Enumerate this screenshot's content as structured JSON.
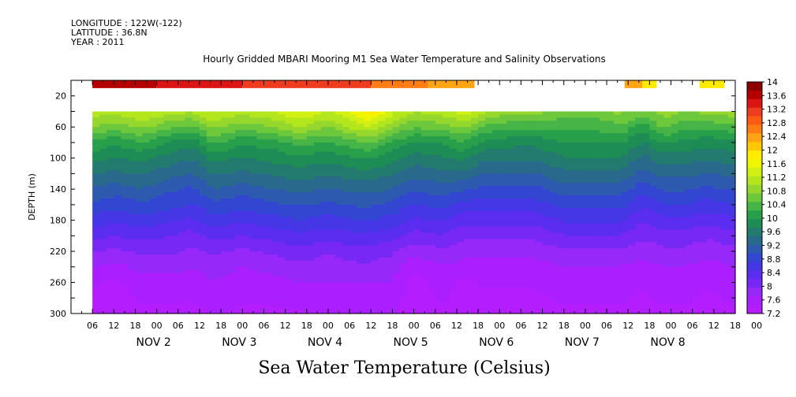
{
  "header": {
    "longitude": "LONGITUDE : 122W(-122)",
    "latitude": "LATITUDE : 36.8N",
    "year": "YEAR : 2011"
  },
  "chart_data": {
    "type": "heatmap",
    "title": "Hourly Gridded MBARI Mooring M1 Sea Water Temperature and Salinity Observations",
    "xlabel": "Sea Water Temperature (Celsius)",
    "ylabel": "DEPTH (m)",
    "ylim": [
      300,
      0
    ],
    "y_ticks": [
      20,
      60,
      100,
      140,
      180,
      220,
      260,
      300
    ],
    "x_hour_labels": [
      "06",
      "12",
      "18",
      "00",
      "06",
      "12",
      "18",
      "00",
      "06",
      "12",
      "18",
      "00",
      "06",
      "12",
      "18",
      "00",
      "06",
      "12",
      "18",
      "00",
      "06",
      "12",
      "18",
      "00",
      "06",
      "12",
      "18",
      "00",
      "06",
      "12",
      "18",
      "00"
    ],
    "x_day_labels": [
      "NOV 2",
      "NOV 3",
      "NOV 4",
      "NOV 5",
      "NOV 6",
      "NOV 7",
      "NOV 8"
    ],
    "x_range_hours": [
      0,
      186
    ],
    "data_start_hour": 6,
    "colorbar": {
      "labels": [
        "14",
        "13.6",
        "13.2",
        "12.8",
        "12.4",
        "12",
        "11.6",
        "11.2",
        "10.8",
        "10.4",
        "10",
        "9.6",
        "9.2",
        "8.8",
        "8.4",
        "8",
        "7.6",
        "7.2"
      ],
      "min": 7.2,
      "max": 14,
      "colors": [
        "#8b0000",
        "#b40000",
        "#dc1414",
        "#f03c1e",
        "#ff5a14",
        "#ff7d14",
        "#ffa514",
        "#ffc800",
        "#ffeb00",
        "#f0f500",
        "#d2f014",
        "#b4e61e",
        "#96d72d",
        "#6ec83c",
        "#46b446",
        "#28a04b",
        "#1e8c55",
        "#237a6e",
        "#28698c",
        "#2d5aaf",
        "#3246d2",
        "#4637e6",
        "#5a2df0",
        "#7828f5",
        "#9628fa",
        "#aa1eff",
        "#b41eff"
      ]
    },
    "surface_band": [
      {
        "hours": [
          6,
          24
        ],
        "value": 13.7
      },
      {
        "hours": [
          24,
          48
        ],
        "value": 13.4
      },
      {
        "hours": [
          48,
          84
        ],
        "value": 13.0
      },
      {
        "hours": [
          84,
          100
        ],
        "value": 12.6
      },
      {
        "hours": [
          100,
          113
        ],
        "value": 12.4
      },
      {
        "hours": [
          155,
          160
        ],
        "value": 12.3
      },
      {
        "hours": [
          160,
          164
        ],
        "value": 11.9
      },
      {
        "hours": [
          176,
          183
        ],
        "value": 11.9
      }
    ],
    "profile_depths": [
      40,
      60,
      80,
      100,
      120,
      140,
      160,
      180,
      200,
      220,
      240,
      260,
      280,
      300
    ],
    "profiles": [
      {
        "hour": 6,
        "values": [
          11.2,
          10.7,
          10.2,
          9.8,
          9.5,
          9.2,
          8.9,
          8.6,
          8.3,
          8.0,
          7.7,
          7.5,
          7.4,
          7.3
        ]
      },
      {
        "hour": 12,
        "values": [
          11.0,
          10.6,
          10.0,
          9.7,
          9.4,
          9.1,
          8.8,
          8.5,
          8.2,
          7.9,
          7.6,
          7.4,
          7.3,
          7.3
        ]
      },
      {
        "hour": 20,
        "values": [
          11.3,
          10.8,
          10.2,
          9.8,
          9.5,
          9.2,
          8.9,
          8.6,
          8.3,
          8.0,
          7.8,
          7.6,
          7.5,
          7.4
        ]
      },
      {
        "hour": 28,
        "values": [
          11.1,
          10.5,
          9.9,
          9.6,
          9.3,
          9.0,
          8.8,
          8.5,
          8.2,
          8.0,
          7.8,
          7.6,
          7.5,
          7.4
        ]
      },
      {
        "hour": 34,
        "values": [
          11.0,
          10.4,
          9.8,
          9.5,
          9.2,
          8.9,
          8.7,
          8.4,
          8.1,
          7.9,
          7.7,
          7.6,
          7.5,
          7.3
        ]
      },
      {
        "hour": 40,
        "values": [
          11.3,
          10.8,
          10.3,
          9.8,
          9.5,
          9.2,
          8.9,
          8.6,
          8.3,
          8.0,
          7.8,
          7.7,
          7.6,
          7.5
        ]
      },
      {
        "hour": 48,
        "values": [
          11.1,
          10.6,
          10.0,
          9.7,
          9.4,
          9.1,
          8.8,
          8.5,
          8.2,
          7.9,
          7.7,
          7.6,
          7.5,
          7.4
        ]
      },
      {
        "hour": 56,
        "values": [
          11.2,
          10.7,
          10.1,
          9.8,
          9.5,
          9.2,
          8.9,
          8.6,
          8.3,
          8.0,
          7.8,
          7.6,
          7.5,
          7.4
        ]
      },
      {
        "hour": 64,
        "values": [
          11.5,
          11.0,
          10.3,
          9.9,
          9.6,
          9.3,
          9.0,
          8.7,
          8.4,
          8.1,
          7.9,
          7.7,
          7.6,
          7.4
        ]
      },
      {
        "hour": 72,
        "values": [
          11.2,
          10.7,
          10.2,
          9.8,
          9.5,
          9.2,
          8.9,
          8.6,
          8.3,
          8.0,
          7.8,
          7.7,
          7.6,
          7.5
        ]
      },
      {
        "hour": 80,
        "values": [
          11.6,
          11.1,
          10.4,
          10.0,
          9.6,
          9.3,
          9.0,
          8.7,
          8.4,
          8.1,
          7.9,
          7.7,
          7.6,
          7.5
        ]
      },
      {
        "hour": 84,
        "values": [
          11.9,
          11.2,
          10.5,
          10.0,
          9.6,
          9.3,
          9.0,
          8.7,
          8.4,
          8.1,
          7.9,
          7.7,
          7.6,
          7.5
        ]
      },
      {
        "hour": 90,
        "values": [
          11.3,
          10.8,
          10.2,
          9.8,
          9.5,
          9.2,
          8.9,
          8.6,
          8.3,
          8.0,
          7.8,
          7.7,
          7.6,
          7.5
        ]
      },
      {
        "hour": 96,
        "values": [
          11.0,
          10.5,
          9.9,
          9.6,
          9.3,
          9.0,
          8.7,
          8.4,
          8.1,
          7.8,
          7.5,
          7.3,
          7.3,
          7.2
        ]
      },
      {
        "hour": 104,
        "values": [
          11.1,
          10.6,
          10.0,
          9.7,
          9.4,
          9.1,
          8.8,
          8.5,
          8.2,
          7.9,
          7.7,
          7.6,
          7.5,
          7.4
        ]
      },
      {
        "hour": 110,
        "values": [
          11.4,
          10.8,
          10.2,
          9.8,
          9.4,
          9.0,
          8.6,
          8.3,
          8.0,
          7.8,
          7.6,
          7.4,
          7.3,
          7.3
        ]
      },
      {
        "hour": 116,
        "values": [
          11.0,
          10.4,
          9.9,
          9.5,
          9.2,
          8.9,
          8.6,
          8.3,
          8.0,
          7.8,
          7.6,
          7.5,
          7.4,
          7.4
        ]
      },
      {
        "hour": 124,
        "values": [
          10.8,
          10.3,
          9.8,
          9.5,
          9.2,
          8.9,
          8.6,
          8.3,
          8.0,
          7.8,
          7.6,
          7.5,
          7.4,
          7.3
        ]
      },
      {
        "hour": 130,
        "values": [
          10.8,
          10.3,
          9.8,
          9.5,
          9.2,
          8.9,
          8.6,
          8.3,
          8.0,
          7.8,
          7.6,
          7.5,
          7.4,
          7.3
        ]
      },
      {
        "hour": 138,
        "values": [
          10.6,
          10.3,
          10.0,
          9.7,
          9.4,
          9.1,
          8.8,
          8.5,
          8.2,
          7.9,
          7.7,
          7.6,
          7.5,
          7.4
        ]
      },
      {
        "hour": 146,
        "values": [
          10.6,
          10.3,
          10.0,
          9.7,
          9.4,
          9.1,
          8.8,
          8.5,
          8.2,
          7.9,
          7.7,
          7.6,
          7.5,
          7.4
        ]
      },
      {
        "hour": 154,
        "values": [
          10.8,
          10.4,
          10.0,
          9.7,
          9.4,
          9.1,
          8.8,
          8.5,
          8.2,
          7.9,
          7.7,
          7.6,
          7.5,
          7.4
        ]
      },
      {
        "hour": 160,
        "values": [
          10.6,
          10.1,
          9.7,
          9.4,
          9.1,
          8.8,
          8.5,
          8.2,
          8.0,
          7.8,
          7.6,
          7.5,
          7.4,
          7.4
        ]
      },
      {
        "hour": 166,
        "values": [
          10.9,
          10.5,
          10.0,
          9.6,
          9.3,
          9.0,
          8.7,
          8.4,
          8.1,
          7.9,
          7.7,
          7.6,
          7.5,
          7.4
        ]
      },
      {
        "hour": 172,
        "values": [
          10.7,
          10.3,
          9.9,
          9.6,
          9.3,
          9.0,
          8.7,
          8.4,
          8.1,
          7.9,
          7.7,
          7.6,
          7.5,
          7.4
        ]
      },
      {
        "hour": 178,
        "values": [
          10.8,
          10.3,
          9.8,
          9.5,
          9.2,
          8.9,
          8.6,
          8.3,
          8.0,
          7.8,
          7.6,
          7.5,
          7.4,
          7.4
        ]
      },
      {
        "hour": 186,
        "values": [
          10.9,
          10.4,
          9.9,
          9.6,
          9.3,
          9.0,
          8.7,
          8.4,
          8.1,
          7.9,
          7.7,
          7.6,
          7.5,
          7.4
        ]
      }
    ]
  }
}
